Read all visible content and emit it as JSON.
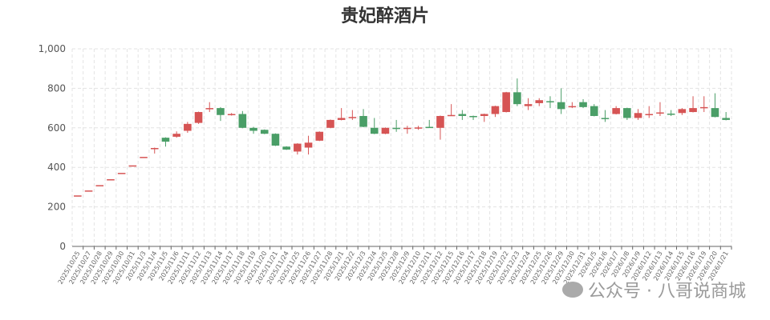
{
  "chart_data": {
    "type": "candlestick",
    "title": "贵妃醉酒片",
    "xlabel": "",
    "ylabel": "",
    "ylim": [
      0,
      1000
    ],
    "yticks": [
      "0",
      "200",
      "400",
      "600",
      "800",
      "1,000"
    ],
    "grid": true,
    "up_color": "#d65454",
    "down_color": "#4a9e67",
    "fields": [
      "open",
      "close",
      "low",
      "high"
    ],
    "categories": [
      "2025/10/25",
      "2025/10/27",
      "2025/10/28",
      "2025/10/29",
      "2025/10/30",
      "2025/10/31",
      "2025/11/3",
      "2025/11/4",
      "2025/11/5",
      "2025/11/6",
      "2025/11/11",
      "2025/11/12",
      "2025/11/13",
      "2025/11/14",
      "2025/11/17",
      "2025/11/18",
      "2025/11/19",
      "2025/11/20",
      "2025/11/21",
      "2025/11/24",
      "2025/11/25",
      "2025/11/26",
      "2025/11/27",
      "2025/11/28",
      "2025/12/1",
      "2025/12/2",
      "2025/12/3",
      "2025/12/4",
      "2025/12/5",
      "2025/12/8",
      "2025/12/9",
      "2025/12/10",
      "2025/12/11",
      "2025/12/12",
      "2025/12/15",
      "2025/12/16",
      "2025/12/17",
      "2025/12/18",
      "2025/12/19",
      "2025/12/22",
      "2025/12/23",
      "2025/12/24",
      "2025/12/25",
      "2025/12/26",
      "2025/12/29",
      "2025/12/30",
      "2025/12/31",
      "2026/1/5",
      "2026/1/6",
      "2026/1/7",
      "2026/1/8",
      "2026/1/9",
      "2026/1/12",
      "2026/1/13",
      "2026/1/14",
      "2026/1/15",
      "2026/1/16",
      "2026/1/19",
      "2026/1/20",
      "2026/1/21"
    ],
    "values": [
      [
        258,
        258,
        258,
        258
      ],
      [
        283,
        283,
        283,
        283
      ],
      [
        310,
        310,
        310,
        310
      ],
      [
        340,
        340,
        340,
        340
      ],
      [
        372,
        372,
        372,
        372
      ],
      [
        410,
        410,
        410,
        410
      ],
      [
        453,
        453,
        453,
        453
      ],
      [
        495,
        498,
        470,
        500
      ],
      [
        550,
        530,
        505,
        552
      ],
      [
        555,
        570,
        550,
        582
      ],
      [
        585,
        620,
        575,
        630
      ],
      [
        625,
        680,
        620,
        682
      ],
      [
        700,
        700,
        680,
        730
      ],
      [
        700,
        665,
        635,
        705
      ],
      [
        665,
        670,
        662,
        675
      ],
      [
        670,
        600,
        598,
        685
      ],
      [
        600,
        585,
        570,
        605
      ],
      [
        590,
        570,
        568,
        592
      ],
      [
        570,
        510,
        508,
        572
      ],
      [
        505,
        490,
        488,
        507
      ],
      [
        480,
        520,
        465,
        522
      ],
      [
        500,
        525,
        465,
        560
      ],
      [
        535,
        580,
        533,
        582
      ],
      [
        600,
        640,
        598,
        642
      ],
      [
        640,
        650,
        638,
        700
      ],
      [
        650,
        655,
        640,
        690
      ],
      [
        660,
        605,
        603,
        695
      ],
      [
        600,
        570,
        568,
        650
      ],
      [
        570,
        600,
        568,
        602
      ],
      [
        600,
        595,
        580,
        640
      ],
      [
        600,
        600,
        570,
        610
      ],
      [
        600,
        602,
        590,
        610
      ],
      [
        605,
        603,
        600,
        640
      ],
      [
        600,
        660,
        540,
        662
      ],
      [
        665,
        665,
        660,
        720
      ],
      [
        670,
        660,
        640,
        690
      ],
      [
        660,
        658,
        640,
        662
      ],
      [
        660,
        670,
        630,
        672
      ],
      [
        670,
        710,
        655,
        712
      ],
      [
        680,
        780,
        678,
        782
      ],
      [
        780,
        720,
        710,
        850
      ],
      [
        710,
        720,
        690,
        750
      ],
      [
        725,
        740,
        710,
        750
      ],
      [
        735,
        730,
        700,
        760
      ],
      [
        730,
        695,
        670,
        800
      ],
      [
        710,
        710,
        700,
        730
      ],
      [
        730,
        705,
        700,
        745
      ],
      [
        710,
        660,
        658,
        720
      ],
      [
        650,
        645,
        630,
        690
      ],
      [
        670,
        700,
        668,
        710
      ],
      [
        700,
        650,
        640,
        702
      ],
      [
        650,
        675,
        640,
        695
      ],
      [
        670,
        670,
        650,
        710
      ],
      [
        672,
        678,
        660,
        730
      ],
      [
        672,
        668,
        660,
        690
      ],
      [
        675,
        695,
        665,
        700
      ],
      [
        680,
        700,
        678,
        760
      ],
      [
        705,
        705,
        680,
        760
      ],
      [
        700,
        655,
        653,
        775
      ],
      [
        650,
        640,
        638,
        680
      ]
    ]
  },
  "watermark": {
    "text": "公众号 · 八哥说商城",
    "icon": "wechat-icon"
  }
}
